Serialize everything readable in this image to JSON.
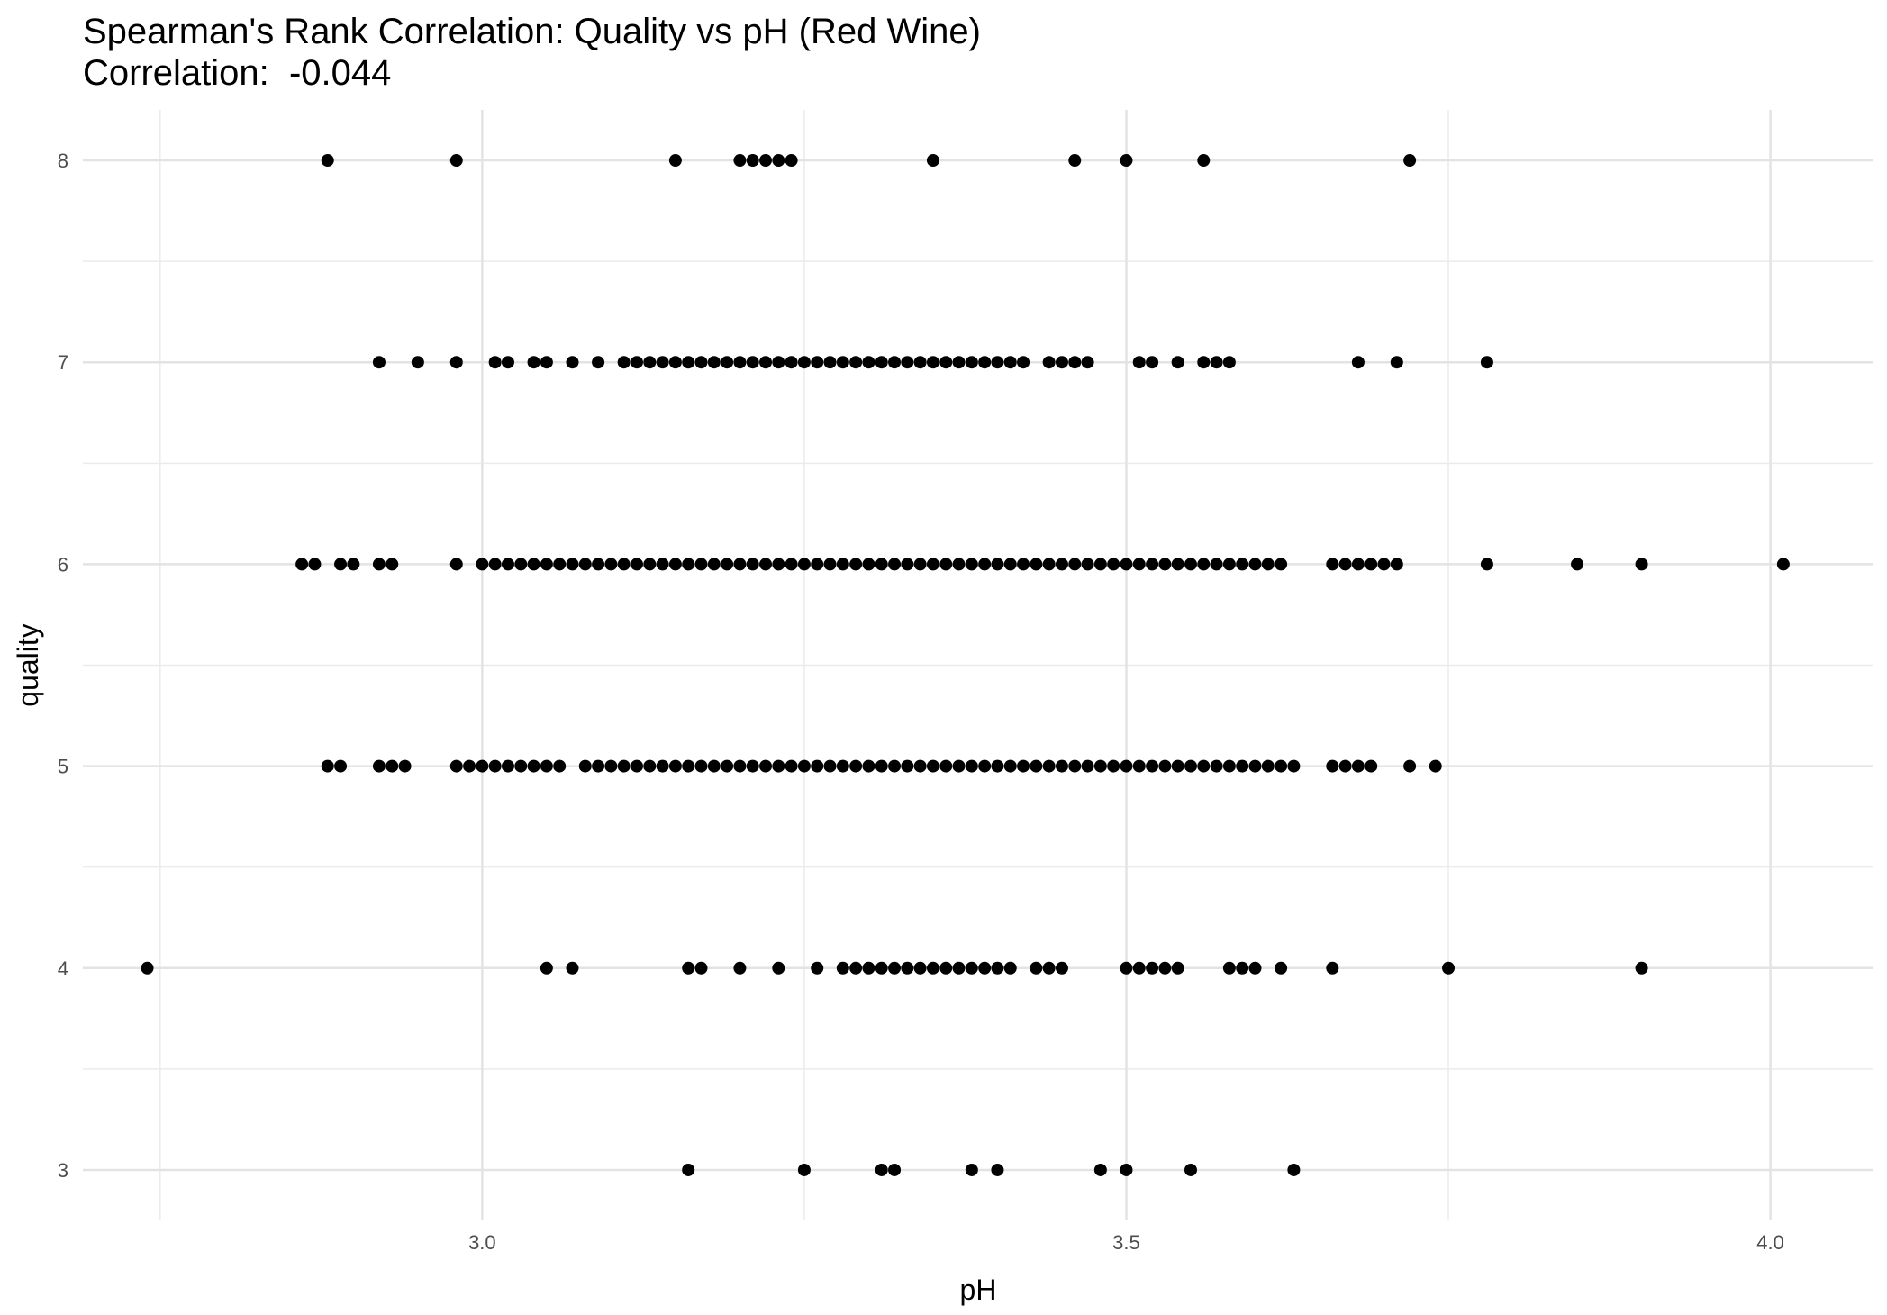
{
  "chart_data": {
    "type": "scatter",
    "title": "Spearman's Rank Correlation: Quality vs pH (Red Wine)",
    "subtitle": "Correlation:  -0.044",
    "xlabel": "pH",
    "ylabel": "quality",
    "xlim": [
      2.69,
      4.08
    ],
    "ylim": [
      2.75,
      8.25
    ],
    "xticks": [
      3.0,
      3.5,
      4.0
    ],
    "xtick_labels": [
      "3.0",
      "3.5",
      "4.0"
    ],
    "yticks": [
      3,
      4,
      5,
      6,
      7,
      8
    ],
    "ytick_labels": [
      "3",
      "4",
      "5",
      "6",
      "7",
      "8"
    ],
    "grid": true,
    "point_color": "#000000",
    "points": [
      {
        "quality": 3,
        "ph": [
          3.16,
          3.25,
          3.31,
          3.32,
          3.38,
          3.4,
          3.48,
          3.5,
          3.55,
          3.63
        ]
      },
      {
        "quality": 4,
        "ph": [
          2.74,
          3.05,
          3.07,
          3.16,
          3.17,
          3.2,
          3.23,
          3.26,
          3.28,
          3.29,
          3.3,
          3.31,
          3.32,
          3.33,
          3.34,
          3.35,
          3.36,
          3.37,
          3.38,
          3.39,
          3.4,
          3.41,
          3.43,
          3.44,
          3.45,
          3.5,
          3.51,
          3.52,
          3.53,
          3.54,
          3.58,
          3.59,
          3.6,
          3.62,
          3.66,
          3.75,
          3.9
        ]
      },
      {
        "quality": 5,
        "ph": [
          2.88,
          2.89,
          2.92,
          2.93,
          2.94,
          2.98,
          2.99,
          3.0,
          3.01,
          3.02,
          3.03,
          3.04,
          3.05,
          3.06,
          3.08,
          3.09,
          3.1,
          3.11,
          3.12,
          3.13,
          3.14,
          3.15,
          3.16,
          3.17,
          3.18,
          3.19,
          3.2,
          3.21,
          3.22,
          3.23,
          3.24,
          3.25,
          3.26,
          3.27,
          3.28,
          3.29,
          3.3,
          3.31,
          3.32,
          3.33,
          3.34,
          3.35,
          3.36,
          3.37,
          3.38,
          3.39,
          3.4,
          3.41,
          3.42,
          3.43,
          3.44,
          3.45,
          3.46,
          3.47,
          3.48,
          3.49,
          3.5,
          3.51,
          3.52,
          3.53,
          3.54,
          3.55,
          3.56,
          3.57,
          3.58,
          3.59,
          3.6,
          3.61,
          3.62,
          3.63,
          3.66,
          3.67,
          3.68,
          3.69,
          3.72,
          3.74
        ]
      },
      {
        "quality": 6,
        "ph": [
          2.86,
          2.87,
          2.89,
          2.9,
          2.92,
          2.93,
          2.98,
          3.0,
          3.01,
          3.02,
          3.03,
          3.04,
          3.05,
          3.06,
          3.07,
          3.08,
          3.09,
          3.1,
          3.11,
          3.12,
          3.13,
          3.14,
          3.15,
          3.16,
          3.17,
          3.18,
          3.19,
          3.2,
          3.21,
          3.22,
          3.23,
          3.24,
          3.25,
          3.26,
          3.27,
          3.28,
          3.29,
          3.3,
          3.31,
          3.32,
          3.33,
          3.34,
          3.35,
          3.36,
          3.37,
          3.38,
          3.39,
          3.4,
          3.41,
          3.42,
          3.43,
          3.44,
          3.45,
          3.46,
          3.47,
          3.48,
          3.49,
          3.5,
          3.51,
          3.52,
          3.53,
          3.54,
          3.55,
          3.56,
          3.57,
          3.58,
          3.59,
          3.6,
          3.61,
          3.62,
          3.66,
          3.67,
          3.68,
          3.69,
          3.7,
          3.71,
          3.78,
          3.85,
          3.9,
          4.01
        ]
      },
      {
        "quality": 7,
        "ph": [
          2.92,
          2.95,
          2.98,
          3.01,
          3.02,
          3.04,
          3.05,
          3.07,
          3.09,
          3.11,
          3.12,
          3.13,
          3.14,
          3.15,
          3.16,
          3.17,
          3.18,
          3.19,
          3.2,
          3.21,
          3.22,
          3.23,
          3.24,
          3.25,
          3.26,
          3.27,
          3.28,
          3.29,
          3.3,
          3.31,
          3.32,
          3.33,
          3.34,
          3.35,
          3.36,
          3.37,
          3.38,
          3.39,
          3.4,
          3.41,
          3.42,
          3.44,
          3.45,
          3.46,
          3.47,
          3.51,
          3.52,
          3.54,
          3.56,
          3.57,
          3.58,
          3.68,
          3.71,
          3.78
        ]
      },
      {
        "quality": 8,
        "ph": [
          2.88,
          2.98,
          3.15,
          3.2,
          3.21,
          3.22,
          3.23,
          3.24,
          3.35,
          3.46,
          3.5,
          3.56,
          3.72
        ]
      }
    ]
  }
}
